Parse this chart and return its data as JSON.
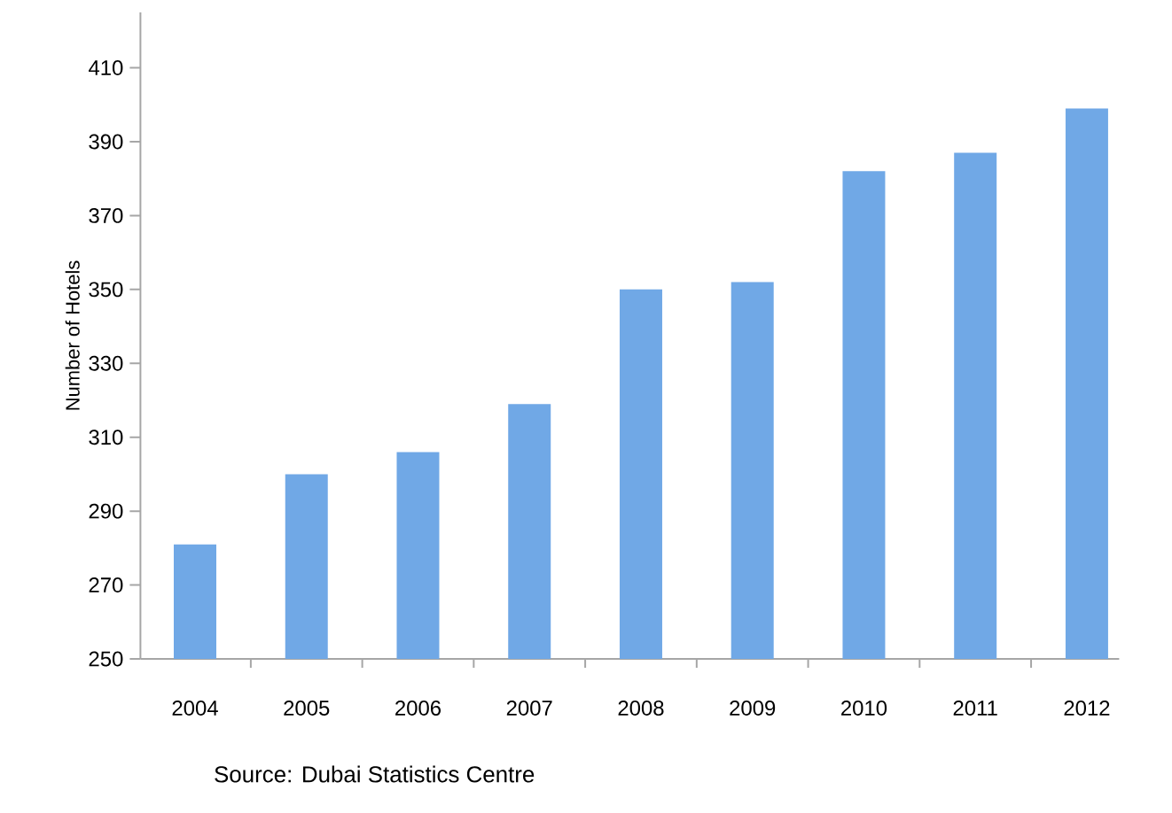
{
  "chart_data": {
    "type": "bar",
    "ylabel": "Number of Hotels",
    "categories": [
      "2004",
      "2005",
      "2006",
      "2007",
      "2008",
      "2009",
      "2010",
      "2011",
      "2012"
    ],
    "values": [
      281,
      300,
      306,
      319,
      350,
      352,
      382,
      387,
      399
    ],
    "color": "#70a8e6",
    "ylim": [
      250,
      425
    ],
    "yticks": [
      250,
      270,
      290,
      310,
      330,
      350,
      370,
      390,
      410
    ],
    "annotations": [
      "Source: Dubai Statistics Centre"
    ]
  }
}
